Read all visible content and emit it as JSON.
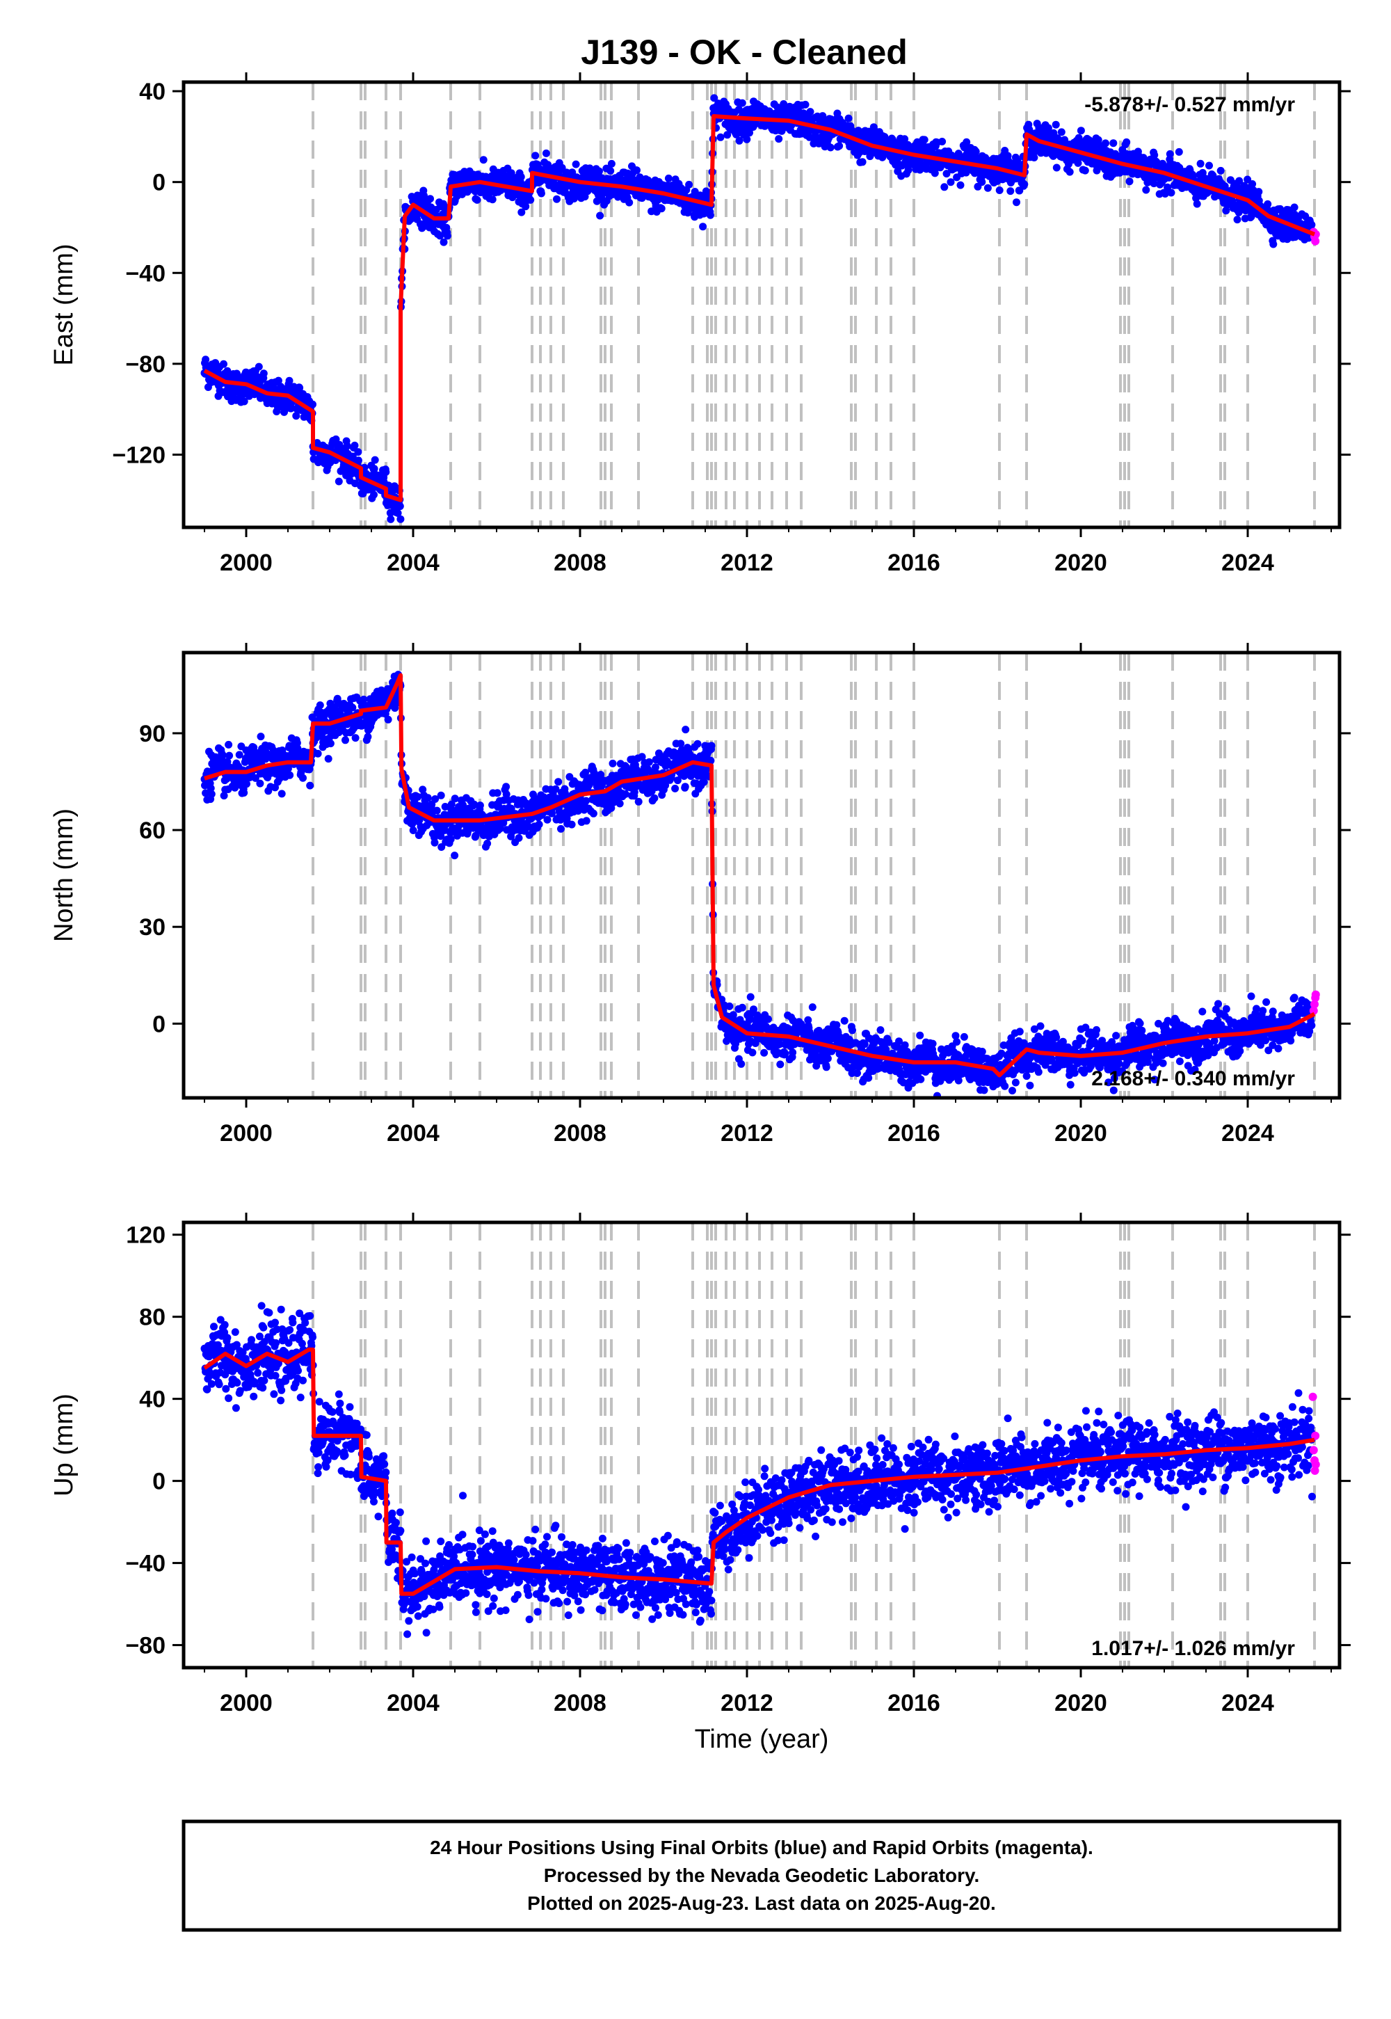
{
  "title": "J139  - OK - Cleaned",
  "colors": {
    "final": "#0000ff",
    "rapid": "#ff00ff",
    "model": "#ff0000",
    "event_line": "#c0c0c0",
    "frame": "#000000"
  },
  "footer": {
    "line1": "24 Hour Positions Using Final Orbits (blue) and Rapid Orbits (magenta).",
    "line2": "Processed by the Nevada Geodetic Laboratory.",
    "line3": "Plotted on 2025-Aug-23. Last data on 2025-Aug-20."
  },
  "chart_data": {
    "type": "scatter",
    "x_label": "Time (year)",
    "xlim": [
      1998.5,
      2026.2
    ],
    "x_ticks": [
      2000,
      2004,
      2008,
      2012,
      2016,
      2020,
      2024
    ],
    "x_tick_labels": [
      "2000",
      "2004",
      "2008",
      "2012",
      "2016",
      "2020",
      "2024"
    ],
    "event_lines": [
      2001.6,
      2002.75,
      2002.85,
      2003.35,
      2003.7,
      2004.9,
      2005.6,
      2006.85,
      2007.05,
      2007.3,
      2007.6,
      2008.5,
      2008.6,
      2008.75,
      2009.4,
      2010.7,
      2011.05,
      2011.15,
      2011.25,
      2011.5,
      2011.7,
      2012.0,
      2012.3,
      2012.6,
      2012.95,
      2013.3,
      2014.5,
      2014.6,
      2015.1,
      2015.45,
      2016.0,
      2018.05,
      2018.7,
      2020.95,
      2021.05,
      2021.15,
      2022.2,
      2023.35,
      2023.45,
      2024.0,
      2025.6
    ],
    "panels": [
      {
        "component": "East",
        "y_label": "East (mm)",
        "ylim": [
          -152,
          44
        ],
        "y_ticks": [
          40,
          0,
          -40,
          -80,
          -120
        ],
        "y_tick_labels": [
          "40",
          "0",
          "−40",
          "−80",
          "−120"
        ],
        "rate_text": "-5.878+/- 0.527 mm/yr",
        "rate_position": "top-right",
        "noise_sd": 3.5,
        "model_breakpoints": [
          [
            1999.0,
            -83.0
          ],
          [
            1999.5,
            -88.0
          ],
          [
            2000.0,
            -89.0
          ],
          [
            2000.5,
            -93.0
          ],
          [
            2001.0,
            -94.0
          ],
          [
            2001.6,
            -101.0
          ],
          [
            2001.6,
            -117.0
          ],
          [
            2002.0,
            -119.0
          ],
          [
            2002.75,
            -126.0
          ],
          [
            2002.75,
            -130.0
          ],
          [
            2003.35,
            -135.0
          ],
          [
            2003.35,
            -138.0
          ],
          [
            2003.7,
            -140.0
          ],
          [
            2003.7,
            -55.0
          ],
          [
            2003.8,
            -15.0
          ],
          [
            2004.0,
            -10.0
          ],
          [
            2004.5,
            -16.0
          ],
          [
            2004.85,
            -16.0
          ],
          [
            2004.9,
            -2.0
          ],
          [
            2005.6,
            0.0
          ],
          [
            2006.85,
            -4.0
          ],
          [
            2006.85,
            4.0
          ],
          [
            2008.0,
            0.0
          ],
          [
            2009.0,
            -2.0
          ],
          [
            2010.0,
            -5.0
          ],
          [
            2011.15,
            -10.0
          ],
          [
            2011.2,
            29.0
          ],
          [
            2012.0,
            28.0
          ],
          [
            2013.0,
            27.0
          ],
          [
            2014.0,
            23.0
          ],
          [
            2015.0,
            16.0
          ],
          [
            2016.0,
            12.0
          ],
          [
            2017.0,
            9.0
          ],
          [
            2018.0,
            6.0
          ],
          [
            2018.65,
            3.0
          ],
          [
            2018.7,
            21.0
          ],
          [
            2019.0,
            18.0
          ],
          [
            2020.0,
            13.0
          ],
          [
            2021.0,
            8.0
          ],
          [
            2022.0,
            4.0
          ],
          [
            2023.0,
            -2.0
          ],
          [
            2024.0,
            -8.0
          ],
          [
            2024.5,
            -15.0
          ],
          [
            2025.6,
            -23.0
          ]
        ],
        "rapid_points": [
          [
            2025.58,
            -22.0
          ],
          [
            2025.6,
            -24.0
          ],
          [
            2025.62,
            -26.0
          ],
          [
            2025.63,
            -23.0
          ]
        ]
      },
      {
        "component": "North",
        "y_label": "North (mm)",
        "ylim": [
          -23,
          115
        ],
        "y_ticks": [
          90,
          60,
          30,
          0
        ],
        "y_tick_labels": [
          "90",
          "60",
          "30",
          "0"
        ],
        "rate_text": "2.168+/- 0.340 mm/yr",
        "rate_position": "bottom-right",
        "noise_sd": 3.2,
        "model_breakpoints": [
          [
            1999.0,
            76.0
          ],
          [
            1999.5,
            78.0
          ],
          [
            2000.0,
            78.0
          ],
          [
            2000.5,
            80.0
          ],
          [
            2001.0,
            81.0
          ],
          [
            2001.55,
            81.0
          ],
          [
            2001.6,
            93.0
          ],
          [
            2002.0,
            93.0
          ],
          [
            2002.75,
            96.0
          ],
          [
            2002.75,
            97.0
          ],
          [
            2003.35,
            98.0
          ],
          [
            2003.6,
            105.0
          ],
          [
            2003.7,
            108.0
          ],
          [
            2003.72,
            79.0
          ],
          [
            2003.9,
            67.0
          ],
          [
            2004.5,
            63.0
          ],
          [
            2005.6,
            63.0
          ],
          [
            2006.85,
            65.0
          ],
          [
            2007.3,
            67.0
          ],
          [
            2008.0,
            71.0
          ],
          [
            2008.6,
            72.0
          ],
          [
            2009.0,
            75.0
          ],
          [
            2010.0,
            77.0
          ],
          [
            2010.7,
            81.0
          ],
          [
            2011.15,
            80.0
          ],
          [
            2011.2,
            12.0
          ],
          [
            2011.4,
            2.0
          ],
          [
            2012.0,
            -3.0
          ],
          [
            2013.0,
            -4.0
          ],
          [
            2014.0,
            -7.0
          ],
          [
            2015.0,
            -10.0
          ],
          [
            2016.0,
            -12.0
          ],
          [
            2017.0,
            -12.0
          ],
          [
            2017.9,
            -14.0
          ],
          [
            2018.05,
            -16.0
          ],
          [
            2018.7,
            -8.0
          ],
          [
            2019.0,
            -9.0
          ],
          [
            2020.0,
            -10.0
          ],
          [
            2021.0,
            -9.0
          ],
          [
            2022.0,
            -6.0
          ],
          [
            2023.0,
            -4.0
          ],
          [
            2024.0,
            -3.0
          ],
          [
            2025.0,
            -1.0
          ],
          [
            2025.6,
            3.0
          ]
        ],
        "rapid_points": [
          [
            2025.58,
            4.0
          ],
          [
            2025.6,
            6.0
          ],
          [
            2025.62,
            8.0
          ],
          [
            2025.63,
            9.0
          ]
        ]
      },
      {
        "component": "Up",
        "y_label": "Up (mm)",
        "ylim": [
          -91,
          126
        ],
        "y_ticks": [
          120,
          80,
          40,
          0,
          -40,
          -80
        ],
        "y_tick_labels": [
          "120",
          "80",
          "40",
          "0",
          "−40",
          "−80"
        ],
        "rate_text": "1.017+/- 1.026 mm/yr",
        "rate_position": "bottom-right",
        "noise_sd": 8.0,
        "model_breakpoints": [
          [
            1999.0,
            55.0
          ],
          [
            1999.5,
            62.0
          ],
          [
            2000.0,
            56.0
          ],
          [
            2000.5,
            62.0
          ],
          [
            2001.0,
            58.0
          ],
          [
            2001.5,
            64.0
          ],
          [
            2001.6,
            64.0
          ],
          [
            2001.62,
            22.0
          ],
          [
            2002.75,
            22.0
          ],
          [
            2002.76,
            2.0
          ],
          [
            2003.35,
            0.0
          ],
          [
            2003.36,
            -30.0
          ],
          [
            2003.7,
            -30.0
          ],
          [
            2003.72,
            -55.0
          ],
          [
            2004.0,
            -55.0
          ],
          [
            2005.0,
            -43.0
          ],
          [
            2006.0,
            -42.0
          ],
          [
            2007.0,
            -44.0
          ],
          [
            2008.0,
            -45.0
          ],
          [
            2009.0,
            -47.0
          ],
          [
            2010.0,
            -48.0
          ],
          [
            2011.15,
            -50.0
          ],
          [
            2011.2,
            -30.0
          ],
          [
            2011.5,
            -25.0
          ],
          [
            2012.0,
            -18.0
          ],
          [
            2013.0,
            -8.0
          ],
          [
            2014.0,
            -2.0
          ],
          [
            2015.0,
            0.0
          ],
          [
            2016.0,
            2.0
          ],
          [
            2017.0,
            3.0
          ],
          [
            2018.0,
            4.0
          ],
          [
            2019.0,
            7.0
          ],
          [
            2020.0,
            10.0
          ],
          [
            2021.0,
            12.0
          ],
          [
            2022.0,
            13.0
          ],
          [
            2023.0,
            15.0
          ],
          [
            2024.0,
            16.0
          ],
          [
            2025.0,
            18.0
          ],
          [
            2025.6,
            20.0
          ]
        ],
        "rapid_points": [
          [
            2025.56,
            41.0
          ],
          [
            2025.58,
            15.0
          ],
          [
            2025.6,
            10.0
          ],
          [
            2025.61,
            5.0
          ],
          [
            2025.62,
            22.0
          ],
          [
            2025.63,
            8.0
          ]
        ]
      }
    ]
  }
}
